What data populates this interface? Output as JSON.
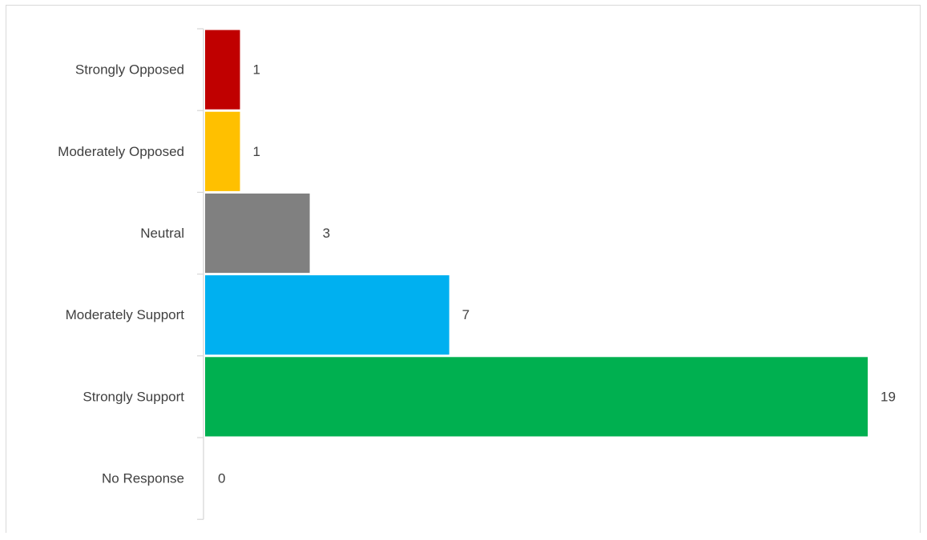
{
  "chart_data": {
    "type": "bar",
    "orientation": "horizontal",
    "categories": [
      "Strongly Opposed",
      "Moderately Opposed",
      "Neutral",
      "Moderately Support",
      "Strongly Support",
      "No Response"
    ],
    "values": [
      1,
      1,
      3,
      7,
      19,
      0
    ],
    "colors": [
      "#C00000",
      "#FFC000",
      "#808080",
      "#00B0F0",
      "#00B050",
      "#A5A5A5"
    ],
    "title": "",
    "xlabel": "",
    "ylabel": "",
    "xlim": [
      0,
      19
    ],
    "grid": false,
    "legend": "none",
    "data_labels": true
  }
}
